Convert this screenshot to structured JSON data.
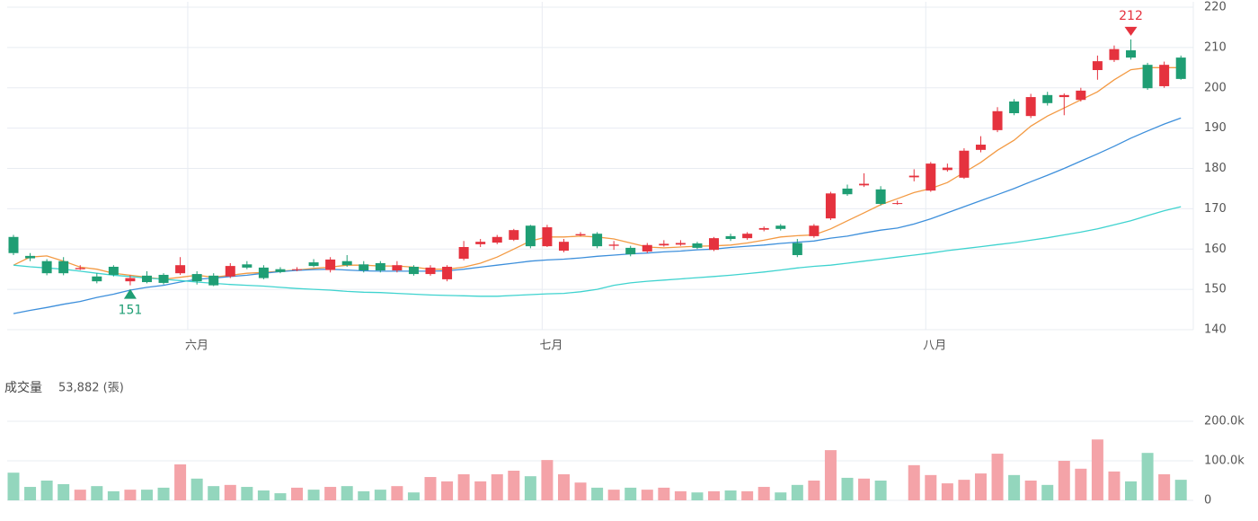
{
  "chart_data": {
    "type": "candlestick",
    "xticks": [
      {
        "value": 10.45,
        "label": "六月"
      },
      {
        "value": 31.7,
        "label": "七月"
      },
      {
        "value": 54.7,
        "label": "八月"
      }
    ],
    "open": [
      163,
      158.3,
      157,
      157,
      155,
      153.2,
      155.6,
      152,
      153.4,
      153.6,
      154,
      153.8,
      153.4,
      153.2,
      156.2,
      155.4,
      155,
      154.8,
      156.7,
      154.8,
      157,
      156.2,
      156.5,
      154.7,
      155.6,
      153.8,
      152.5,
      157.6,
      161.2,
      161.6,
      162.3,
      165.8,
      160.7,
      159.6,
      163.4,
      163.8,
      160.8,
      160.3,
      159.4,
      160.9,
      161.1,
      161.4,
      159.8,
      163.2,
      162.7,
      164.8,
      165.8,
      161.5,
      163.2,
      167.6,
      175,
      175.8,
      174.8,
      171.2,
      177.8,
      174.5,
      179.6,
      177.7,
      184.6,
      189.5,
      196.6,
      193,
      198.2,
      197.7,
      197,
      204.4,
      206.9,
      209.3,
      205.7,
      200.4,
      207.5
    ],
    "close": [
      159,
      157.7,
      154,
      154,
      155.3,
      152,
      153.6,
      152.8,
      151.8,
      151.6,
      156,
      152,
      151,
      155.8,
      155.4,
      152.8,
      154.3,
      155,
      155.8,
      157.4,
      156,
      154.7,
      154.7,
      156,
      153.8,
      155.4,
      155.6,
      160.5,
      161.8,
      163,
      164.7,
      160.7,
      165.4,
      161.8,
      163.7,
      160.7,
      161.1,
      158.7,
      161,
      161.3,
      161.5,
      160.3,
      162.7,
      162.5,
      163.8,
      165.2,
      165,
      158.5,
      165.8,
      173.8,
      173.6,
      176.2,
      171.2,
      171.4,
      178.2,
      181.2,
      180.2,
      184.4,
      185.9,
      194.2,
      193.7,
      197.7,
      196.2,
      198.2,
      199.3,
      206.6,
      209.6,
      207.5,
      199.9,
      205.7,
      202.2
    ],
    "high": [
      163.5,
      159,
      157.5,
      158,
      156,
      154,
      156,
      153.5,
      154.5,
      154,
      158,
      154.5,
      154,
      156.5,
      157,
      156,
      155.5,
      155.5,
      157.5,
      158,
      158.5,
      157,
      157,
      157,
      156,
      156,
      156,
      162,
      162.5,
      163.5,
      165,
      166,
      166,
      162.5,
      164.2,
      164.2,
      162,
      160.8,
      161.5,
      162.2,
      162.2,
      161.8,
      163,
      163.8,
      164.2,
      165.6,
      166.2,
      162.5,
      166.2,
      174.2,
      176,
      178.8,
      175.6,
      172,
      179.8,
      181.6,
      181.2,
      185,
      188,
      195.2,
      197.2,
      198.5,
      199,
      198.6,
      200,
      208,
      210.5,
      212,
      206.2,
      206.5,
      208
    ],
    "low": [
      158.5,
      157,
      153.5,
      153.5,
      154.8,
      151.5,
      153.2,
      151,
      151.5,
      151.2,
      153.6,
      151.2,
      150.8,
      152.8,
      155,
      152.5,
      154,
      154.5,
      155.5,
      154.2,
      155.6,
      154.2,
      154.2,
      154.2,
      153.4,
      153.4,
      152,
      157.2,
      160.5,
      161.2,
      162,
      160.2,
      160.5,
      159.2,
      163.2,
      160.2,
      159.8,
      158.2,
      159,
      160.6,
      160.8,
      160,
      159.5,
      162,
      162.3,
      164.4,
      164.6,
      158,
      162.8,
      167.2,
      173.2,
      175.4,
      170.8,
      171,
      176.8,
      174.2,
      179.2,
      177.4,
      184,
      189,
      193.2,
      192.5,
      195.6,
      193.2,
      196.6,
      202,
      206.4,
      207,
      199.5,
      200,
      202
    ],
    "series": [
      {
        "color": "#f39a43",
        "values": [
          156,
          158,
          158.3,
          157,
          155.5,
          155,
          154,
          153.5,
          153,
          152.5,
          153,
          153.5,
          153,
          153.5,
          154,
          154.2,
          154.5,
          154.8,
          155.2,
          155.5,
          156,
          156,
          155.8,
          155.8,
          155.5,
          155,
          155,
          155.5,
          156.5,
          158,
          160,
          162,
          163,
          163,
          163.2,
          163,
          162.5,
          161.5,
          160.5,
          160.3,
          160.5,
          160.7,
          160.8,
          161,
          161.5,
          162.2,
          163,
          163.3,
          163.5,
          165,
          167,
          169,
          171,
          172.5,
          174,
          175,
          176.5,
          179,
          181.5,
          184.5,
          187,
          190.5,
          193,
          195,
          197,
          199,
          202,
          204.5,
          205,
          205,
          205
        ]
      },
      {
        "color": "#3d8fdb",
        "values": [
          144,
          144.8,
          145.5,
          146.3,
          147,
          148,
          148.8,
          149.8,
          150.5,
          151,
          151.8,
          152.5,
          152.8,
          153.2,
          153.5,
          154,
          154.4,
          154.7,
          154.9,
          155,
          154.8,
          154.6,
          154.5,
          154.5,
          154.5,
          154.5,
          154.6,
          155,
          155.5,
          156,
          156.5,
          157,
          157.3,
          157.5,
          157.8,
          158.2,
          158.5,
          158.8,
          159,
          159.3,
          159.5,
          159.8,
          160,
          160.4,
          160.7,
          161,
          161.4,
          161.7,
          162,
          162.7,
          163.2,
          164,
          164.7,
          165.2,
          166.2,
          167.5,
          169,
          170.5,
          172,
          173.5,
          175,
          176.7,
          178.3,
          180,
          181.8,
          183.6,
          185.5,
          187.5,
          189.3,
          191,
          192.5
        ]
      },
      {
        "color": "#3fd3cf",
        "values": [
          156,
          155.6,
          155.3,
          155,
          154.5,
          154,
          153.5,
          153.2,
          152.8,
          152.5,
          152.2,
          151.8,
          151.5,
          151.2,
          151,
          150.8,
          150.5,
          150.2,
          150,
          149.8,
          149.5,
          149.3,
          149.2,
          149,
          148.8,
          148.6,
          148.5,
          148.4,
          148.3,
          148.3,
          148.5,
          148.7,
          148.9,
          149,
          149.4,
          150,
          151,
          151.6,
          152,
          152.3,
          152.6,
          152.9,
          153.2,
          153.5,
          153.9,
          154.3,
          154.8,
          155.3,
          155.7,
          156,
          156.5,
          157,
          157.5,
          158,
          158.5,
          159,
          159.6,
          160.1,
          160.6,
          161.1,
          161.6,
          162.2,
          162.8,
          163.5,
          164.2,
          165,
          166,
          167,
          168.3,
          169.5,
          170.5
        ]
      }
    ],
    "ylim": [
      140,
      220
    ],
    "yticks": [
      140,
      150,
      160,
      170,
      180,
      190,
      200,
      210,
      220
    ],
    "grid": true,
    "up_color": "#e5323e",
    "down_color": "#1f9e74",
    "max_label": 212,
    "min_label": 151,
    "volume": {
      "label": "成交量",
      "value_text": "53,882 (張)",
      "values": [
        70000,
        34000,
        50000,
        41000,
        27000,
        36000,
        23000,
        27000,
        27000,
        32000,
        91000,
        55000,
        36000,
        39000,
        34000,
        25000,
        18000,
        32000,
        27000,
        34000,
        36000,
        23000,
        27000,
        36000,
        20000,
        59000,
        48000,
        66000,
        48000,
        66000,
        75000,
        61000,
        102000,
        66000,
        45000,
        32000,
        27000,
        32000,
        27000,
        32000,
        23000,
        20000,
        23000,
        25000,
        23000,
        34000,
        20000,
        39000,
        50000,
        127000,
        57000,
        55000,
        50000,
        null,
        89000,
        64000,
        43000,
        52000,
        68000,
        118000,
        64000,
        50000,
        39000,
        100000,
        80000,
        154000,
        73000,
        48000,
        120000,
        66000,
        52000
      ],
      "ylim": [
        0,
        200000
      ],
      "yticks": [
        0,
        {
          "value": 100000,
          "label": "100.0k"
        },
        {
          "value": 200000,
          "label": "200.0k"
        }
      ],
      "up_color": "#f4a3a8",
      "down_color": "#93d6bd"
    }
  }
}
